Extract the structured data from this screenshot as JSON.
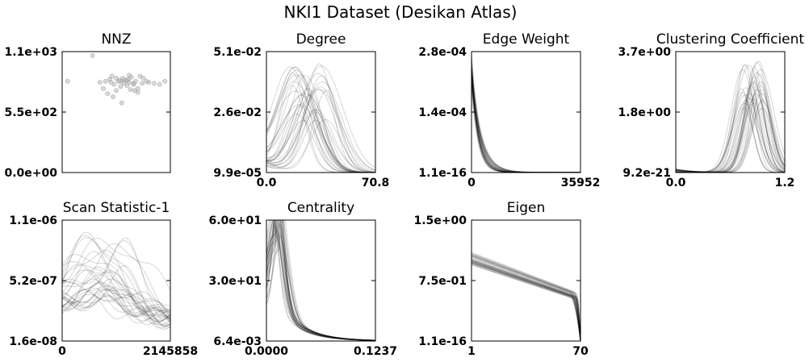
{
  "figure": {
    "title": "NKI1 Dataset (Desikan Atlas)"
  },
  "chart_data": [
    {
      "id": "nnz",
      "type": "scatter",
      "title": "NNZ",
      "yticks": [
        "1.1e+03",
        "5.5e+02",
        "0.0e+00"
      ],
      "xticks": [],
      "ylim": [
        0,
        1100
      ],
      "points": [
        [
          0.05,
          850
        ],
        [
          0.28,
          1100
        ],
        [
          0.45,
          840
        ],
        [
          0.62,
          910
        ],
        [
          0.68,
          850
        ],
        [
          0.8,
          840
        ],
        [
          0.7,
          780
        ],
        [
          0.9,
          820
        ],
        [
          0.95,
          850
        ],
        [
          0.35,
          840
        ],
        [
          0.38,
          780
        ],
        [
          0.42,
          730
        ],
        [
          0.44,
          870
        ],
        [
          0.46,
          900
        ],
        [
          0.48,
          820
        ],
        [
          0.5,
          760
        ],
        [
          0.52,
          850
        ],
        [
          0.54,
          800
        ],
        [
          0.55,
          640
        ],
        [
          0.56,
          880
        ],
        [
          0.58,
          860
        ],
        [
          0.6,
          810
        ],
        [
          0.62,
          840
        ],
        [
          0.63,
          770
        ],
        [
          0.64,
          890
        ],
        [
          0.66,
          820
        ],
        [
          0.67,
          760
        ],
        [
          0.7,
          740
        ],
        [
          0.72,
          900
        ],
        [
          0.74,
          830
        ],
        [
          0.75,
          880
        ],
        [
          0.55,
          850
        ],
        [
          0.5,
          880
        ],
        [
          0.6,
          860
        ],
        [
          0.47,
          700
        ],
        [
          0.66,
          830
        ],
        [
          0.78,
          850
        ],
        [
          0.85,
          830
        ],
        [
          0.4,
          850
        ],
        [
          0.57,
          830
        ],
        [
          0.53,
          860
        ],
        [
          0.61,
          870
        ]
      ]
    },
    {
      "id": "degree",
      "type": "line",
      "title": "Degree",
      "yticks": [
        "5.1e-02",
        "2.6e-02",
        "9.9e-05"
      ],
      "xticks": [
        "0.0",
        "70.8"
      ],
      "xlim": [
        0,
        70.8
      ],
      "ylim": [
        9.9e-05,
        0.051
      ],
      "shape": "peak",
      "n_series": 34,
      "peak_range": [
        0.22,
        0.55
      ],
      "height_range": [
        0.4,
        0.95
      ],
      "width_range": [
        0.11,
        0.2
      ],
      "start_range": [
        0.05,
        0.12
      ]
    },
    {
      "id": "edge_weight",
      "type": "line",
      "title": "Edge Weight",
      "yticks": [
        "2.8e-04",
        "1.4e-04",
        "1.1e-16"
      ],
      "xticks": [
        "0",
        "35952"
      ],
      "xlim": [
        0,
        35952
      ],
      "ylim": [
        1.1e-16,
        0.00028
      ],
      "shape": "decay",
      "n_series": 34,
      "peak_range": [
        0.8,
        1.0
      ],
      "height_range": [
        0.7,
        0.98
      ],
      "width_range": [
        0.06,
        0.1
      ],
      "start_range": [
        0.0,
        0.03
      ]
    },
    {
      "id": "clustering",
      "type": "line",
      "title": "Clustering Coefficient",
      "yticks": [
        "3.7e+00",
        "1.8e+00",
        "9.2e-21"
      ],
      "xticks": [
        "0.0",
        "1.2"
      ],
      "xlim": [
        0,
        1.2
      ],
      "ylim": [
        9.2e-21,
        3.7
      ],
      "shape": "peak",
      "n_series": 34,
      "peak_range": [
        0.6,
        0.8
      ],
      "height_range": [
        0.55,
        0.98
      ],
      "width_range": [
        0.08,
        0.12
      ],
      "start_range": [
        0.0,
        0.03
      ]
    },
    {
      "id": "scan_stat",
      "type": "line",
      "title": "Scan Statistic-1",
      "yticks": [
        "1.1e-06",
        "5.2e-07",
        "1.6e-08"
      ],
      "xticks": [
        "0",
        "2145858"
      ],
      "xlim": [
        0,
        2145858
      ],
      "ylim": [
        1.6e-08,
        1.1e-06
      ],
      "shape": "wave",
      "n_series": 34,
      "peak_range": [
        0.15,
        0.6
      ],
      "height_range": [
        0.3,
        0.95
      ],
      "width_range": [
        0.15,
        0.3
      ],
      "start_range": [
        0.25,
        0.35
      ]
    },
    {
      "id": "centrality",
      "type": "line",
      "title": "Centrality",
      "yticks": [
        "6.0e+01",
        "3.0e+01",
        "6.4e-03"
      ],
      "xticks": [
        "0.0000",
        "0.1237"
      ],
      "xlim": [
        0,
        0.1237
      ],
      "ylim": [
        0.0064,
        60
      ],
      "shape": "early-peak",
      "n_series": 34,
      "peak_range": [
        0.06,
        0.12
      ],
      "height_range": [
        0.55,
        0.95
      ],
      "width_range": [
        0.05,
        0.09
      ],
      "start_range": [
        0.35,
        0.55
      ]
    },
    {
      "id": "eigen",
      "type": "line",
      "title": "Eigen",
      "yticks": [
        "1.5e+00",
        "7.5e-01",
        "1.1e-16"
      ],
      "xticks": [
        "1",
        "70"
      ],
      "xlim": [
        1,
        70
      ],
      "ylim": [
        1.1e-16,
        1.5
      ],
      "shape": "sigmoid-decline",
      "n_series": 34,
      "peak_range": [
        0.9,
        0.97
      ],
      "height_range": [
        0.6,
        0.72
      ],
      "width_range": [
        0.8,
        0.85
      ],
      "start_range": [
        0.75,
        0.9
      ]
    }
  ]
}
